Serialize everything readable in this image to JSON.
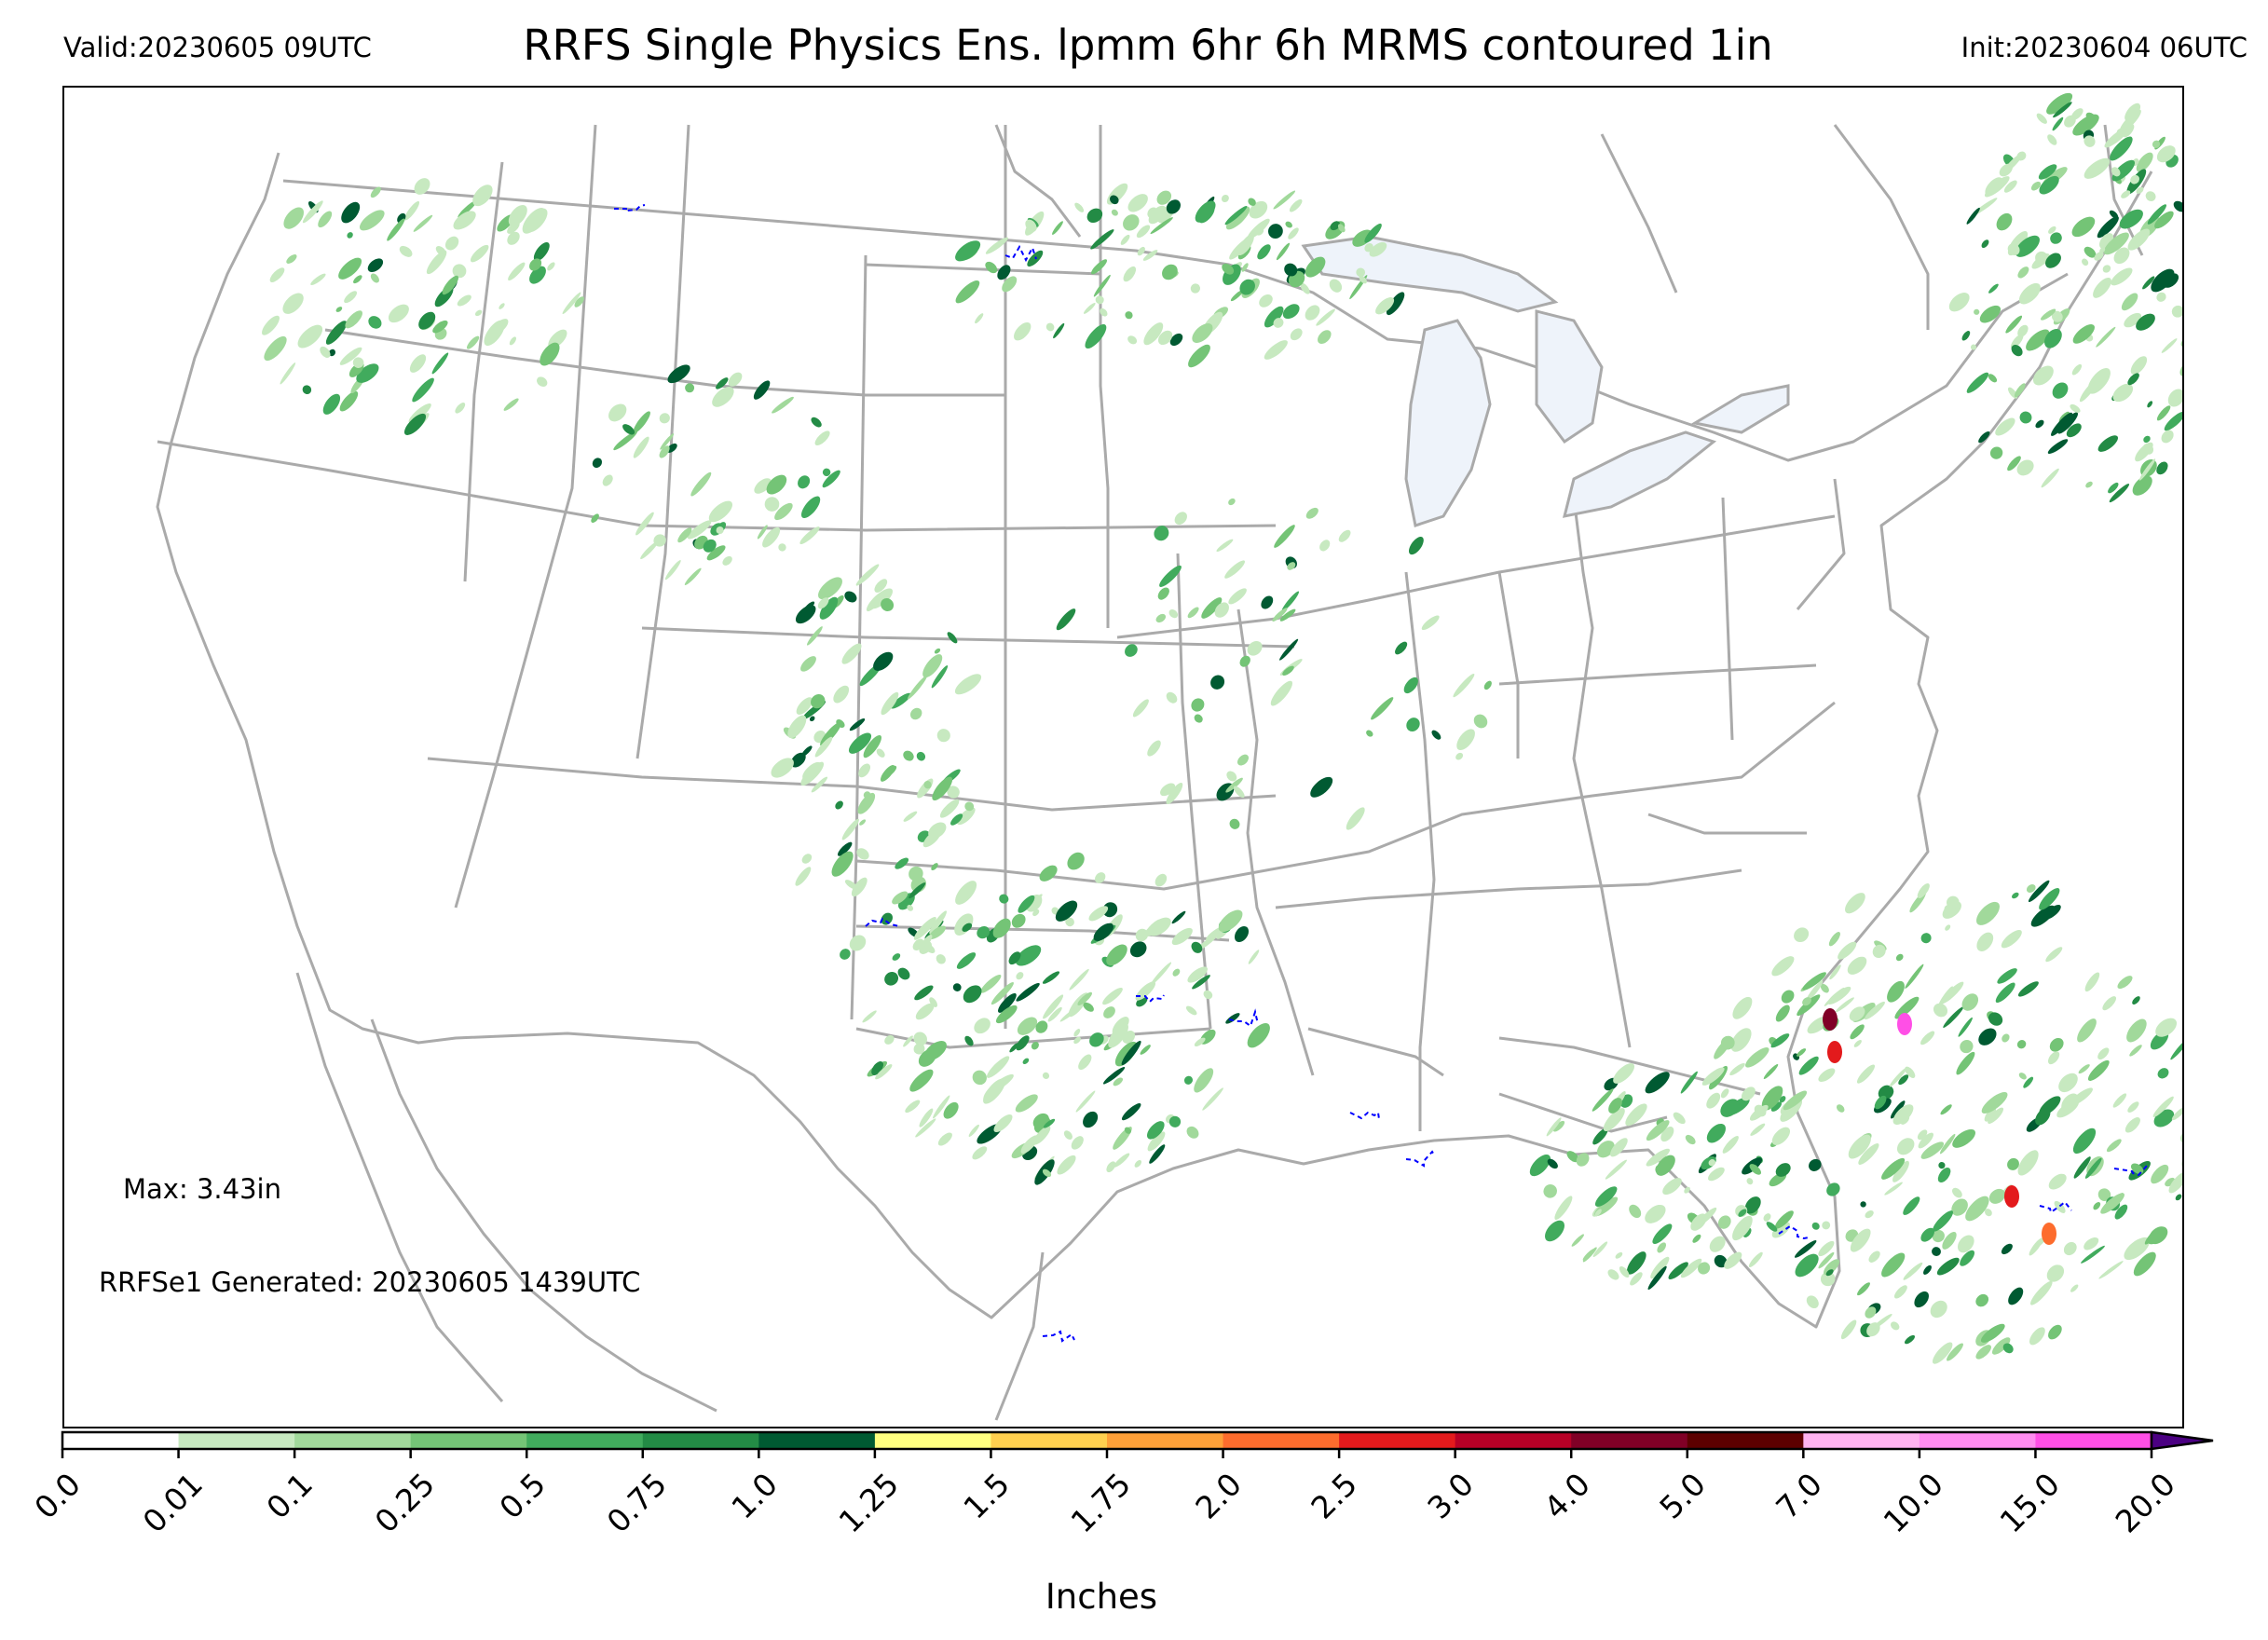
{
  "header": {
    "valid": "Valid:20230605 09UTC",
    "title": "RRFS Single Physics Ens. lpmm 6hr 6h MRMS contoured 1in",
    "init": "Init:20230604 06UTC"
  },
  "map": {
    "max_text": "Max: 3.43in",
    "generated_text": "RRFSe1 Generated: 20230605 1439UTC",
    "border_color": "#aaaaaa",
    "lake_fill": "#eef3fa",
    "mrms_contour_color": "#0000ff"
  },
  "colorbar": {
    "label": "Inches",
    "ticks": [
      "0.0",
      "0.01",
      "0.1",
      "0.25",
      "0.5",
      "0.75",
      "1.0",
      "1.25",
      "1.5",
      "1.75",
      "2.0",
      "2.5",
      "3.0",
      "4.0",
      "5.0",
      "7.0",
      "10.0",
      "15.0",
      "20.0"
    ],
    "colors": [
      "#ffffff",
      "#c7e9c0",
      "#a1d99b",
      "#74c476",
      "#41ab5d",
      "#238b45",
      "#005a32",
      "#ffff80",
      "#ffd04f",
      "#fea038",
      "#fd6c2d",
      "#e31a1c",
      "#b70026",
      "#800026",
      "#5c0000",
      "#ffb3f0",
      "#ff8cf0",
      "#ff4fe6",
      "#e619e6",
      "#b200d9",
      "#8b00c8"
    ],
    "extend_color": "#4b0082"
  }
}
